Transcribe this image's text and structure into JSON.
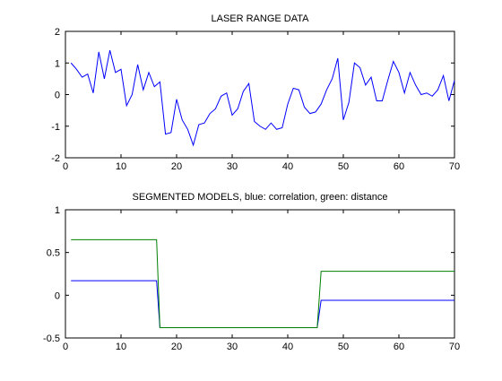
{
  "chart_data": [
    {
      "type": "line",
      "title": "LASER RANGE DATA",
      "xlim": [
        0,
        70
      ],
      "ylim": [
        -2,
        2
      ],
      "xticks": [
        0,
        10,
        20,
        30,
        40,
        50,
        60,
        70
      ],
      "yticks": [
        -2,
        -1,
        0,
        1,
        2
      ],
      "grid": false,
      "series": [
        {
          "color": "#0000ff",
          "x": [
            1,
            2,
            3,
            4,
            5,
            6,
            7,
            8,
            9,
            10,
            11,
            12,
            13,
            14,
            15,
            16,
            17,
            18,
            19,
            20,
            21,
            22,
            23,
            24,
            25,
            26,
            27,
            28,
            29,
            30,
            31,
            32,
            33,
            34,
            35,
            36,
            37,
            38,
            39,
            40,
            41,
            42,
            43,
            44,
            45,
            46,
            47,
            48,
            49,
            50,
            51,
            52,
            53,
            54,
            55,
            56,
            57,
            58,
            59,
            60,
            61,
            62,
            63,
            64,
            65,
            66,
            67,
            68,
            69,
            70
          ],
          "y": [
            1.0,
            0.8,
            0.55,
            0.65,
            0.05,
            1.35,
            0.5,
            1.4,
            0.7,
            0.8,
            -0.35,
            0.0,
            0.95,
            0.15,
            0.7,
            0.25,
            0.4,
            -1.25,
            -1.2,
            -0.15,
            -0.8,
            -1.1,
            -1.6,
            -0.95,
            -0.9,
            -0.6,
            -0.45,
            -0.05,
            0.05,
            -0.65,
            -0.45,
            0.1,
            0.35,
            -0.85,
            -1.0,
            -1.1,
            -0.9,
            -1.1,
            -1.05,
            -0.3,
            0.2,
            0.15,
            -0.4,
            -0.6,
            -0.55,
            -0.3,
            0.15,
            0.5,
            1.15,
            -0.8,
            -0.25,
            1.0,
            0.85,
            0.3,
            0.55,
            -0.2,
            -0.2,
            0.45,
            1.05,
            0.7,
            0.05,
            0.7,
            0.3,
            0.0,
            0.05,
            -0.05,
            0.15,
            0.6,
            -0.2,
            0.45
          ]
        }
      ]
    },
    {
      "type": "line",
      "title": "SEGMENTED MODELS, blue: correlation, green: distance",
      "xlim": [
        0,
        70
      ],
      "ylim": [
        -0.5,
        1
      ],
      "xticks": [
        0,
        10,
        20,
        30,
        40,
        50,
        60,
        70
      ],
      "yticks": [
        -0.5,
        0,
        0.5,
        1
      ],
      "grid": false,
      "series": [
        {
          "name": "correlation",
          "color": "#0000ff",
          "x": [
            1,
            16.4,
            17,
            45.3,
            46,
            70
          ],
          "y": [
            0.17,
            0.17,
            -0.38,
            -0.38,
            -0.06,
            -0.06
          ]
        },
        {
          "name": "distance",
          "color": "#008000",
          "x": [
            1,
            16.4,
            17,
            45.3,
            46,
            70
          ],
          "y": [
            0.65,
            0.65,
            -0.38,
            -0.38,
            0.28,
            0.28
          ]
        }
      ]
    }
  ]
}
